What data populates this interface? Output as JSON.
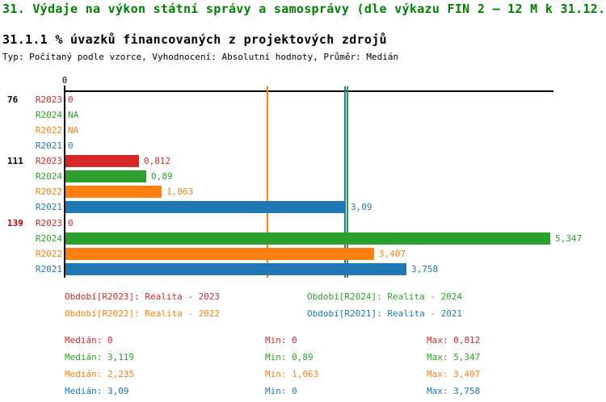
{
  "header": {
    "title": "31. Výdaje na výkon státní správy a samosprávy (dle výkazu FIN 2 – 12 M k 31.12.)",
    "subtitle": "31.1.1 % úvazků financovaných z projektových zdrojů",
    "meta": "Typ: Počítaný podle vzorce, Vyhodnocení: Absolutní hodnoty, Průměr: Medián"
  },
  "chart_data": {
    "type": "bar",
    "orientation": "horizontal",
    "xlabel": "",
    "ylabel": "",
    "x_axis": {
      "tick_labels": [
        "0"
      ],
      "origin_value": 0,
      "grid": false
    },
    "series_colors": {
      "R2023": "#d62728",
      "R2024": "#2ca02c",
      "R2022": "#ff7f0e",
      "R2021": "#1f77b4"
    },
    "groups": [
      {
        "label": "76",
        "label_color": "#000000",
        "rows": [
          {
            "series": "R2023",
            "value": 0,
            "display": "0"
          },
          {
            "series": "R2024",
            "value": null,
            "display": "NA"
          },
          {
            "series": "R2022",
            "value": null,
            "display": "NA"
          },
          {
            "series": "R2021",
            "value": 0,
            "display": "0"
          }
        ]
      },
      {
        "label": "111",
        "label_color": "#000000",
        "rows": [
          {
            "series": "R2023",
            "value": 0.812,
            "display": "0,812"
          },
          {
            "series": "R2024",
            "value": 0.89,
            "display": "0,89"
          },
          {
            "series": "R2022",
            "value": 1.063,
            "display": "1,063"
          },
          {
            "series": "R2021",
            "value": 3.09,
            "display": "3,09"
          }
        ]
      },
      {
        "label": "139",
        "label_color": "#cc0000",
        "rows": [
          {
            "series": "R2023",
            "value": 0,
            "display": "0"
          },
          {
            "series": "R2024",
            "value": 5.347,
            "display": "5,347"
          },
          {
            "series": "R2022",
            "value": 3.407,
            "display": "3,407"
          },
          {
            "series": "R2021",
            "value": 3.758,
            "display": "3,758"
          }
        ]
      }
    ],
    "median_lines": [
      {
        "series": "R2022",
        "value": 2.235
      },
      {
        "series": "R2021",
        "value": 3.09
      },
      {
        "series": "R2024",
        "value": 3.119
      }
    ],
    "legend": [
      {
        "series": "R2023",
        "text": "Období[R2023]: Realita - 2023"
      },
      {
        "series": "R2024",
        "text": "Období[R2024]: Realita - 2024"
      },
      {
        "series": "R2022",
        "text": "Období[R2022]: Realita - 2022"
      },
      {
        "series": "R2021",
        "text": "Období[R2021]: Realita - 2021"
      }
    ],
    "stats": [
      {
        "series": "R2023",
        "median": "Medián: 0",
        "min": "Min: 0",
        "max": "Max: 0,812"
      },
      {
        "series": "R2024",
        "median": "Medián: 3,119",
        "min": "Min: 0,89",
        "max": "Max: 5,347"
      },
      {
        "series": "R2022",
        "median": "Medián: 2,235",
        "min": "Min: 1,063",
        "max": "Max: 3,407"
      },
      {
        "series": "R2021",
        "median": "Medián: 3,09",
        "min": "Min: 0",
        "max": "Max: 3,758"
      }
    ]
  }
}
